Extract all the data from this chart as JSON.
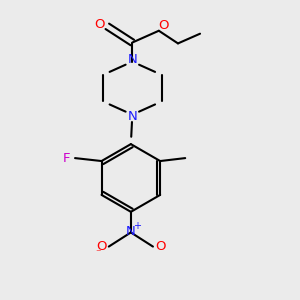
{
  "bg_color": "#ebebeb",
  "bond_color": "#000000",
  "n_color": "#1a1aff",
  "o_color": "#ff0000",
  "f_color": "#cc00cc",
  "line_width": 1.5,
  "fig_width": 3.0,
  "fig_height": 3.0,
  "dpi": 100,
  "xlim": [
    0,
    1
  ],
  "ylim": [
    0,
    1
  ]
}
